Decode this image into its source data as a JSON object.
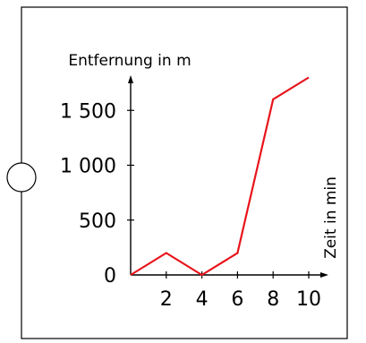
{
  "chart_data": {
    "type": "line",
    "title": "",
    "xlabel": "Zeit in min",
    "ylabel": "Entfernung in m",
    "xlim": [
      0,
      10
    ],
    "ylim": [
      0,
      1800
    ],
    "x_ticks": [
      2,
      4,
      6,
      8,
      10
    ],
    "x_tick_labels": [
      "2",
      "4",
      "6",
      "8",
      "10"
    ],
    "y_ticks": [
      0,
      500,
      1000,
      1500
    ],
    "y_tick_labels": [
      "0",
      "500",
      "1 000",
      "1 500"
    ],
    "grid": false,
    "legend": "none",
    "series": [
      {
        "color": "#e8141b",
        "x": [
          0,
          2,
          4,
          6,
          8,
          10
        ],
        "y": [
          0,
          200,
          0,
          200,
          1600,
          1800
        ]
      }
    ]
  }
}
